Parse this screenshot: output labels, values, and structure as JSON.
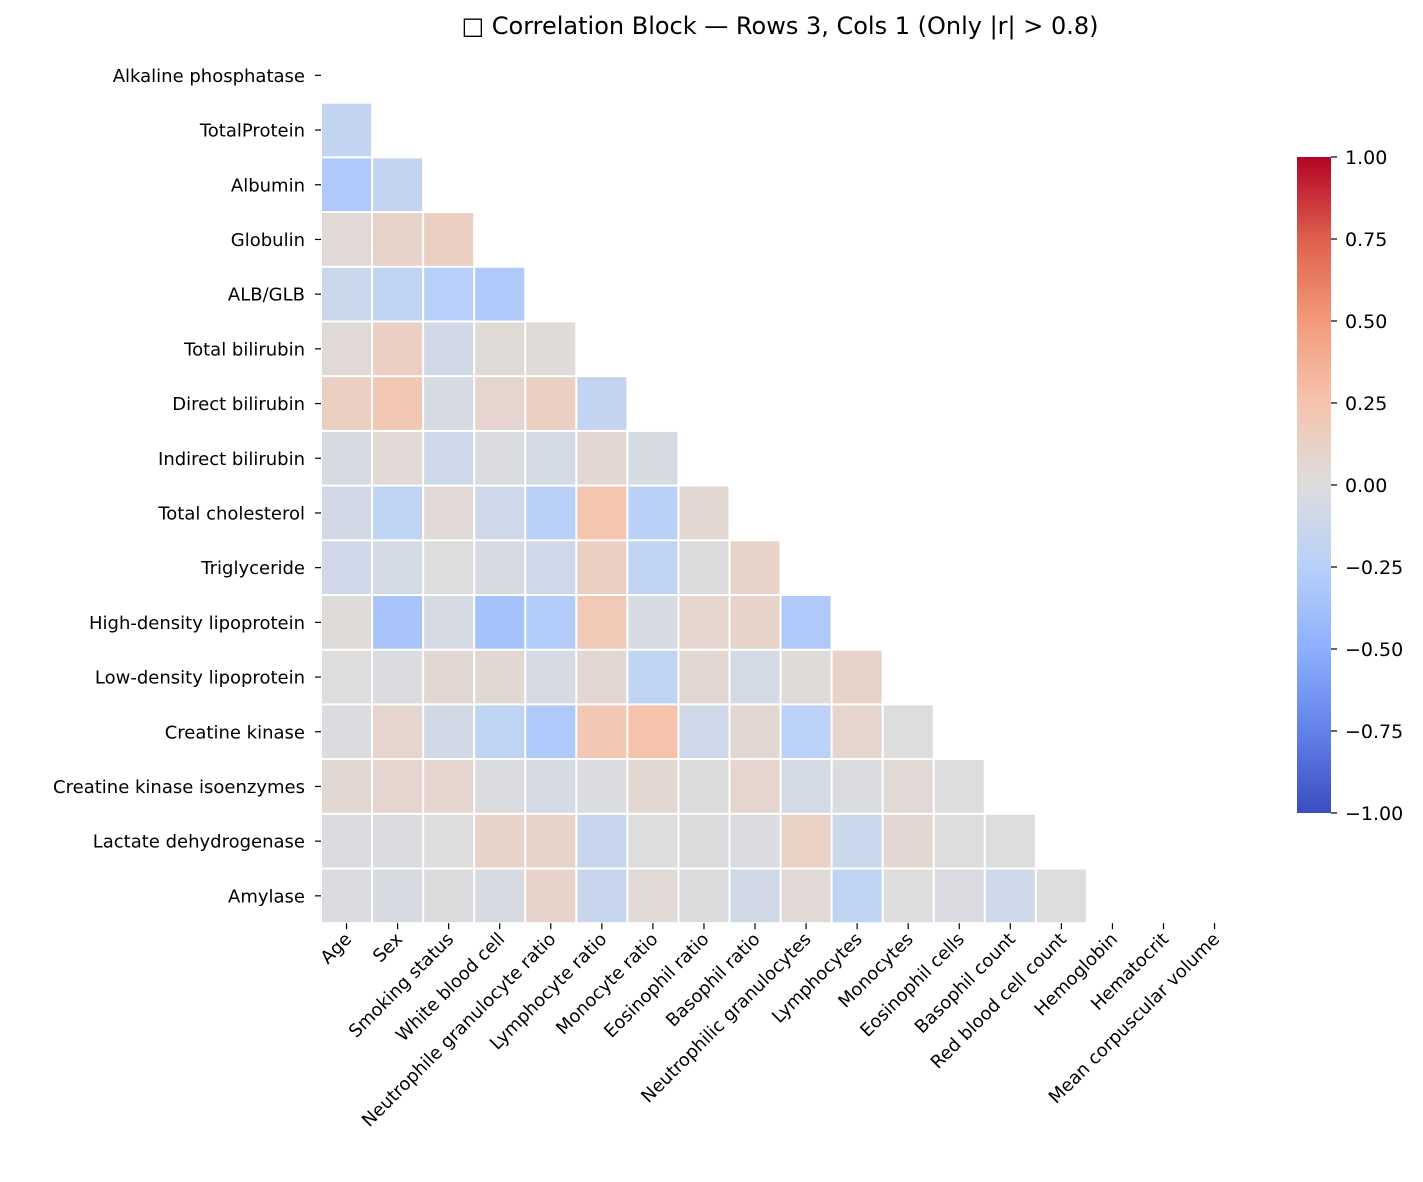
{
  "chart_data": {
    "type": "heatmap",
    "title": "□ Correlation Block — Rows 3, Cols 1 (Only |r| > 0.8)",
    "xlabel": "",
    "ylabel": "",
    "mask": "upper-triangle-including-diagonal",
    "colormap": "coolwarm",
    "vmin": -1.0,
    "vmax": 1.0,
    "colorbar_ticks": [
      "1.00",
      "0.75",
      "0.50",
      "0.25",
      "0.00",
      "−0.25",
      "−0.50",
      "−0.75",
      "−1.00"
    ],
    "colorbar_tick_values": [
      1.0,
      0.75,
      0.5,
      0.25,
      0.0,
      -0.25,
      -0.5,
      -0.75,
      -1.0
    ],
    "row_labels": [
      "Alkaline phosphatase",
      "TotalProtein",
      "Albumin",
      "Globulin",
      "ALB/GLB",
      "Total bilirubin",
      "Direct bilirubin",
      "Indirect bilirubin",
      "Total cholesterol",
      "Triglyceride",
      "High-density lipoprotein",
      "Low-density lipoprotein",
      "Creatine kinase",
      "Creatine kinase isoenzymes",
      "Lactate dehydrogenase",
      "Amylase"
    ],
    "col_labels": [
      "Age",
      "Sex",
      "Smoking status",
      "White blood cell",
      "Neutrophile granulocyte ratio",
      "Lymphocyte ratio",
      "Monocyte ratio",
      "Eosinophil ratio",
      "Basophil ratio",
      "Neutrophilic granulocytes",
      "Lymphocytes",
      "Monocytes",
      "Eosinophil cells",
      "Basophil count",
      "Red blood cell count",
      "Hemoglobin",
      "Hematocrit",
      "Mean corpuscular volume"
    ],
    "values": [
      [],
      [
        -0.18
      ],
      [
        -0.3,
        -0.18
      ],
      [
        0.04,
        0.1,
        0.14
      ],
      [
        -0.12,
        -0.2,
        -0.25,
        -0.3
      ],
      [
        0.04,
        0.14,
        -0.08,
        0.03,
        0.02
      ],
      [
        0.14,
        0.22,
        -0.05,
        0.08,
        0.14,
        -0.18
      ],
      [
        -0.05,
        0.04,
        -0.1,
        -0.02,
        -0.06,
        0.06,
        -0.05
      ],
      [
        -0.08,
        -0.2,
        0.04,
        -0.1,
        -0.24,
        0.24,
        -0.24,
        0.06
      ],
      [
        -0.1,
        -0.06,
        0.0,
        -0.05,
        -0.1,
        0.14,
        -0.2,
        -0.01,
        0.1
      ],
      [
        0.02,
        -0.34,
        -0.05,
        -0.36,
        -0.28,
        0.2,
        -0.05,
        0.08,
        0.1,
        -0.3
      ],
      [
        0.0,
        -0.02,
        0.06,
        0.05,
        -0.05,
        0.06,
        -0.2,
        0.06,
        -0.06,
        0.02,
        0.1
      ],
      [
        -0.02,
        0.08,
        -0.08,
        -0.2,
        -0.3,
        0.22,
        0.26,
        -0.1,
        0.06,
        -0.23,
        0.08,
        0.0
      ],
      [
        0.06,
        0.08,
        0.08,
        -0.02,
        -0.05,
        -0.02,
        0.06,
        -0.01,
        0.08,
        -0.06,
        -0.02,
        0.04,
        0.0
      ],
      [
        -0.02,
        -0.02,
        0.0,
        0.1,
        0.1,
        -0.15,
        0.0,
        -0.01,
        -0.02,
        0.12,
        -0.12,
        0.06,
        0.0,
        0.0
      ],
      [
        -0.02,
        -0.04,
        -0.01,
        -0.04,
        0.1,
        -0.14,
        0.04,
        -0.01,
        -0.08,
        0.04,
        -0.2,
        0.0,
        -0.03,
        -0.1,
        0.0
      ]
    ]
  }
}
